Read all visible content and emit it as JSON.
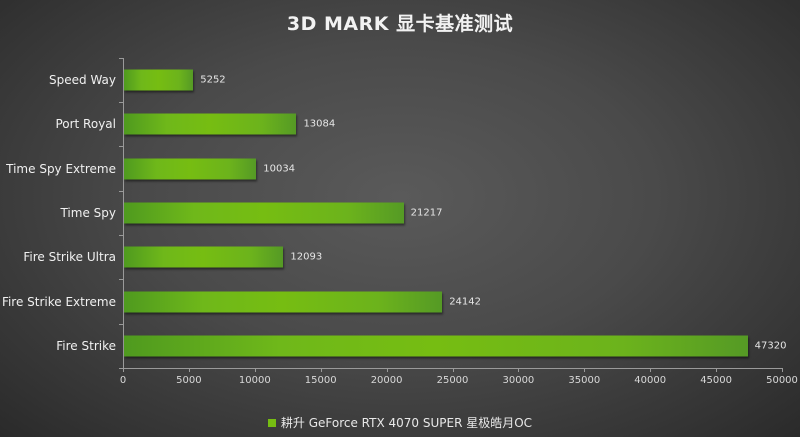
{
  "chart_data": {
    "type": "bar",
    "orientation": "horizontal",
    "title": "3D MARK 显卡基准测试",
    "categories": [
      "Speed Way",
      "Port Royal",
      "Time Spy Extreme",
      "Time Spy",
      "Fire Strike Ultra",
      "Fire Strike Extreme",
      "Fire Strike"
    ],
    "series": [
      {
        "name": "耕升 GeForce RTX 4070 SUPER 星极皓月OC",
        "values": [
          5252,
          13084,
          10034,
          21217,
          12093,
          24142,
          47320
        ],
        "color": "#76bd12"
      }
    ],
    "xlabel": "",
    "ylabel": "",
    "xlim": [
      0,
      50000
    ],
    "xticks": [
      "0",
      "5000",
      "10000",
      "15000",
      "20000",
      "25000",
      "30000",
      "35000",
      "40000",
      "45000",
      "50000"
    ],
    "grid": false,
    "legend_position": "bottom"
  }
}
